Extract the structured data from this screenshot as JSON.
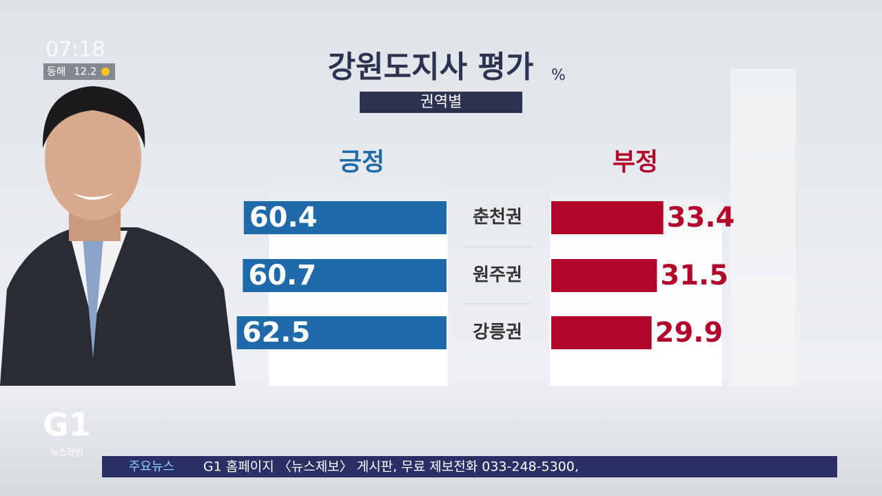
{
  "chart_data": {
    "type": "bar",
    "title": "강원도지사 평가",
    "unit": "%",
    "subtitle": "권역별",
    "categories": [
      "춘천권",
      "원주권",
      "강릉권"
    ],
    "series": [
      {
        "name": "긍정",
        "color": "#1f6aa8",
        "values": [
          60.4,
          60.7,
          62.5
        ]
      },
      {
        "name": "부정",
        "color": "#b3062c",
        "values": [
          33.4,
          31.5,
          29.9
        ]
      }
    ]
  },
  "overlay": {
    "clock": "07:18",
    "weather": {
      "location": "동해",
      "temperature": "12.2"
    },
    "logo": "G1",
    "program": "뉴스라인",
    "ticker": {
      "label": "주요뉴스",
      "text": "G1 홈페이지 〈뉴스제보〉 게시판, 무료 제보전화 033-248-5300,"
    }
  }
}
